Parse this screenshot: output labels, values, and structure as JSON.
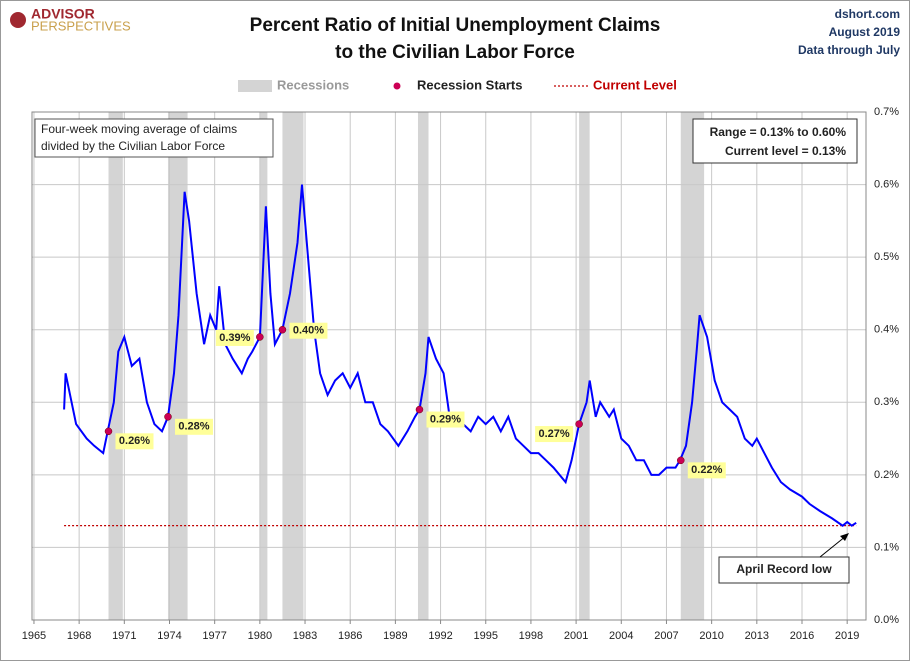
{
  "header": {
    "logo": [
      "ADVISOR",
      "PERSPECTIVES"
    ],
    "source": [
      "dshort.com",
      "August 2019",
      "Data through July"
    ]
  },
  "chart_data": {
    "type": "line",
    "title": [
      "Percent Ratio of Initial Unemployment Claims",
      "to the Civilian Labor Force"
    ],
    "xlim": [
      1964.87,
      2020.25
    ],
    "ylim": [
      0,
      0.7
    ],
    "xticks": [
      1965,
      1968,
      1971,
      1974,
      1977,
      1980,
      1983,
      1986,
      1989,
      1992,
      1995,
      1998,
      2001,
      2004,
      2007,
      2010,
      2013,
      2016,
      2019
    ],
    "yticks": [
      {
        "value": 0,
        "label": "0.0%"
      },
      {
        "value": 0.1,
        "label": "0.1%"
      },
      {
        "value": 0.2,
        "label": "0.2%"
      },
      {
        "value": 0.3,
        "label": "0.3%"
      },
      {
        "value": 0.4,
        "label": "0.4%"
      },
      {
        "value": 0.5,
        "label": "0.5%"
      },
      {
        "value": 0.6,
        "label": "0.6%"
      },
      {
        "value": 0.7,
        "label": "0.7%"
      }
    ],
    "grid": true,
    "series": [
      {
        "color": "#0000ff",
        "x": [
          1967.0,
          1967.1,
          1967.8,
          1968.5,
          1969.0,
          1969.6,
          1969.9,
          1970.3,
          1970.6,
          1971.0,
          1971.5,
          1972.0,
          1972.5,
          1973.0,
          1973.5,
          1973.9,
          1974.3,
          1974.6,
          1975.0,
          1975.3,
          1975.8,
          1976.3,
          1976.7,
          1977.1,
          1977.3,
          1977.7,
          1978.2,
          1978.8,
          1979.2,
          1979.5,
          1980.0,
          1980.4,
          1980.7,
          1981.0,
          1981.5,
          1982.0,
          1982.5,
          1982.8,
          1983.2,
          1983.6,
          1984.0,
          1984.5,
          1985.0,
          1985.5,
          1986.0,
          1986.5,
          1987.0,
          1987.5,
          1988.0,
          1988.5,
          1989.2,
          1989.8,
          1990.3,
          1990.6,
          1991.0,
          1991.2,
          1991.7,
          1992.2,
          1992.6,
          1993.0,
          1993.5,
          1994.0,
          1994.5,
          1995.0,
          1995.5,
          1996.0,
          1996.5,
          1997.0,
          1997.5,
          1998.0,
          1998.5,
          1999.0,
          1999.5,
          2000.3,
          2000.7,
          2001.0,
          2001.2,
          2001.7,
          2001.9,
          2002.3,
          2002.6,
          2003.2,
          2003.5,
          2004.0,
          2004.5,
          2005.0,
          2005.5,
          2006.0,
          2006.5,
          2007.0,
          2007.6,
          2007.9,
          2008.3,
          2008.7,
          2009.0,
          2009.2,
          2009.7,
          2010.2,
          2010.7,
          2011.2,
          2011.7,
          2012.2,
          2012.7,
          2013.0,
          2013.5,
          2014.0,
          2014.6,
          2015.2,
          2016.0,
          2016.5,
          2017.2,
          2018.0,
          2018.7,
          2019.0,
          2019.3,
          2019.6
        ],
        "values": [
          0.29,
          0.34,
          0.27,
          0.25,
          0.24,
          0.23,
          0.26,
          0.3,
          0.37,
          0.39,
          0.35,
          0.36,
          0.3,
          0.27,
          0.26,
          0.28,
          0.34,
          0.42,
          0.59,
          0.55,
          0.45,
          0.38,
          0.42,
          0.4,
          0.46,
          0.38,
          0.36,
          0.34,
          0.36,
          0.37,
          0.39,
          0.57,
          0.45,
          0.38,
          0.4,
          0.45,
          0.52,
          0.6,
          0.5,
          0.4,
          0.34,
          0.31,
          0.33,
          0.34,
          0.32,
          0.34,
          0.3,
          0.3,
          0.27,
          0.26,
          0.24,
          0.26,
          0.28,
          0.29,
          0.34,
          0.39,
          0.36,
          0.34,
          0.28,
          0.27,
          0.27,
          0.26,
          0.28,
          0.27,
          0.28,
          0.26,
          0.28,
          0.25,
          0.24,
          0.23,
          0.23,
          0.22,
          0.21,
          0.19,
          0.22,
          0.25,
          0.27,
          0.3,
          0.33,
          0.28,
          0.3,
          0.28,
          0.29,
          0.25,
          0.24,
          0.22,
          0.22,
          0.2,
          0.2,
          0.21,
          0.21,
          0.22,
          0.24,
          0.3,
          0.37,
          0.42,
          0.39,
          0.33,
          0.3,
          0.29,
          0.28,
          0.25,
          0.24,
          0.25,
          0.23,
          0.21,
          0.19,
          0.18,
          0.17,
          0.16,
          0.15,
          0.14,
          0.13,
          0.135,
          0.13,
          0.134
        ]
      }
    ],
    "recessions": {
      "name": "Recessions",
      "color": "#d4d4d4",
      "spans": [
        [
          1969.95,
          1970.9
        ],
        [
          1973.9,
          1975.2
        ],
        [
          1980.0,
          1980.5
        ],
        [
          1981.5,
          1982.9
        ],
        [
          1990.5,
          1991.2
        ],
        [
          2001.2,
          2001.9
        ],
        [
          2007.95,
          2009.5
        ]
      ]
    },
    "recession_starts": {
      "name": "Recession Starts",
      "color": "#cc0055",
      "x": [
        1969.95,
        1973.9,
        1980.0,
        1981.5,
        1990.6,
        2001.2,
        2007.95
      ],
      "values": [
        0.26,
        0.28,
        0.39,
        0.4,
        0.29,
        0.27,
        0.22
      ],
      "value_labels": [
        "0.26%",
        "0.28%",
        "0.39%",
        "0.40%",
        "0.29%",
        "0.27%",
        "0.22%"
      ]
    },
    "current_level": {
      "name": "Current Level",
      "color": "#c00000",
      "value": 0.13
    },
    "notes": [
      "Four-week moving average of claims",
      "divided by the Civilian Labor Force"
    ],
    "range_box": [
      "Range = 0.13% to 0.60%",
      "Current level = 0.13%"
    ],
    "callout": "April Record low"
  }
}
